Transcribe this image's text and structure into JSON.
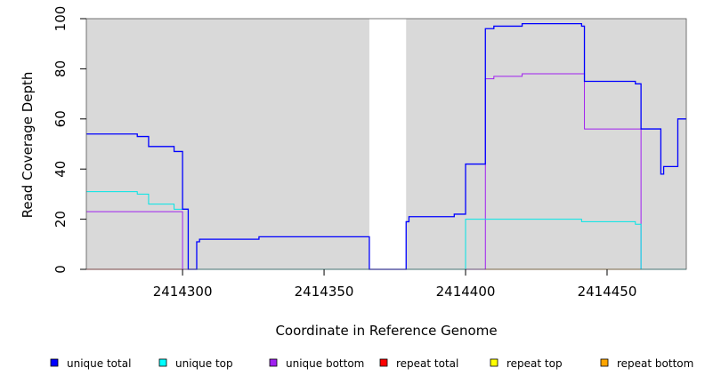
{
  "chart_data": {
    "type": "line",
    "title": "",
    "xlabel": "Coordinate in Reference Genome",
    "ylabel": "Read Coverage Depth",
    "xlim": [
      2414266,
      2414478
    ],
    "ylim": [
      0,
      100
    ],
    "xticks": [
      2414300,
      2414350,
      2414400,
      2414450
    ],
    "yticks": [
      0,
      20,
      40,
      60,
      80,
      100
    ],
    "x_tick_labels": [
      "2414300",
      "2414350",
      "2414400",
      "2414450"
    ],
    "y_tick_labels": [
      "0",
      "20",
      "40",
      "60",
      "80",
      "100"
    ],
    "background_regions": [
      {
        "x0": 2414266,
        "x1": 2414366,
        "color": "#d9d9d9"
      },
      {
        "x0": 2414379,
        "x1": 2414478,
        "color": "#d9d9d9"
      }
    ],
    "series": [
      {
        "name": "unique total",
        "color": "#0000ff",
        "points": [
          [
            2414266,
            54
          ],
          [
            2414284,
            54
          ],
          [
            2414284,
            53
          ],
          [
            2414288,
            53
          ],
          [
            2414288,
            49
          ],
          [
            2414297,
            49
          ],
          [
            2414297,
            47
          ],
          [
            2414300,
            47
          ],
          [
            2414300,
            24
          ],
          [
            2414302,
            24
          ],
          [
            2414302,
            0
          ],
          [
            2414305,
            0
          ],
          [
            2414305,
            11
          ],
          [
            2414306,
            11
          ],
          [
            2414306,
            12
          ],
          [
            2414327,
            12
          ],
          [
            2414327,
            13
          ],
          [
            2414366,
            13
          ],
          [
            2414366,
            0
          ],
          [
            2414379,
            0
          ],
          [
            2414379,
            19
          ],
          [
            2414380,
            19
          ],
          [
            2414380,
            21
          ],
          [
            2414396,
            21
          ],
          [
            2414396,
            22
          ],
          [
            2414400,
            22
          ],
          [
            2414400,
            42
          ],
          [
            2414407,
            42
          ],
          [
            2414407,
            96
          ],
          [
            2414410,
            96
          ],
          [
            2414410,
            97
          ],
          [
            2414420,
            97
          ],
          [
            2414420,
            98
          ],
          [
            2414441,
            98
          ],
          [
            2414441,
            97
          ],
          [
            2414442,
            97
          ],
          [
            2414442,
            75
          ],
          [
            2414460,
            75
          ],
          [
            2414460,
            74
          ],
          [
            2414462,
            74
          ],
          [
            2414462,
            56
          ],
          [
            2414469,
            56
          ],
          [
            2414469,
            38
          ],
          [
            2414470,
            38
          ],
          [
            2414470,
            41
          ],
          [
            2414475,
            41
          ],
          [
            2414475,
            60
          ],
          [
            2414478,
            60
          ]
        ]
      },
      {
        "name": "unique top",
        "color": "#00e5e5",
        "points": [
          [
            2414266,
            31
          ],
          [
            2414284,
            31
          ],
          [
            2414284,
            30
          ],
          [
            2414288,
            30
          ],
          [
            2414288,
            26
          ],
          [
            2414297,
            26
          ],
          [
            2414297,
            24
          ],
          [
            2414302,
            24
          ],
          [
            2414302,
            0
          ],
          [
            2414400,
            0
          ],
          [
            2414400,
            20
          ],
          [
            2414441,
            20
          ],
          [
            2414441,
            19
          ],
          [
            2414460,
            19
          ],
          [
            2414460,
            18
          ],
          [
            2414462,
            18
          ],
          [
            2414462,
            0
          ],
          [
            2414478,
            0
          ]
        ]
      },
      {
        "name": "unique bottom",
        "color": "#a020f0",
        "points": [
          [
            2414266,
            23
          ],
          [
            2414300,
            23
          ],
          [
            2414300,
            0
          ],
          [
            2414407,
            0
          ],
          [
            2414407,
            76
          ],
          [
            2414410,
            76
          ],
          [
            2414410,
            77
          ],
          [
            2414420,
            77
          ],
          [
            2414420,
            78
          ],
          [
            2414442,
            78
          ],
          [
            2414442,
            56
          ],
          [
            2414462,
            56
          ],
          [
            2414462,
            0
          ],
          [
            2414478,
            0
          ]
        ]
      },
      {
        "name": "repeat total",
        "color": "#ff0000",
        "points": [
          [
            2414266,
            0
          ],
          [
            2414366,
            0
          ]
        ]
      },
      {
        "name": "repeat top",
        "color": "#ffff00",
        "points": [
          [
            2414266,
            0
          ],
          [
            2414366,
            0
          ]
        ]
      },
      {
        "name": "repeat bottom",
        "color": "#ff9900",
        "points": [
          [
            2414266,
            0
          ],
          [
            2414366,
            0
          ],
          [
            2414366,
            0
          ],
          [
            2414379,
            0
          ],
          [
            2414478,
            0
          ]
        ]
      }
    ],
    "legend": [
      {
        "label": "unique total",
        "color": "#0000ff"
      },
      {
        "label": "unique top",
        "color": "#00ffff"
      },
      {
        "label": "unique bottom",
        "color": "#a020f0"
      },
      {
        "label": "repeat total",
        "color": "#ff0000"
      },
      {
        "label": "repeat top",
        "color": "#ffff00"
      },
      {
        "label": "repeat bottom",
        "color": "#ffa500"
      }
    ],
    "legend_position": "bottom",
    "grid": false
  }
}
